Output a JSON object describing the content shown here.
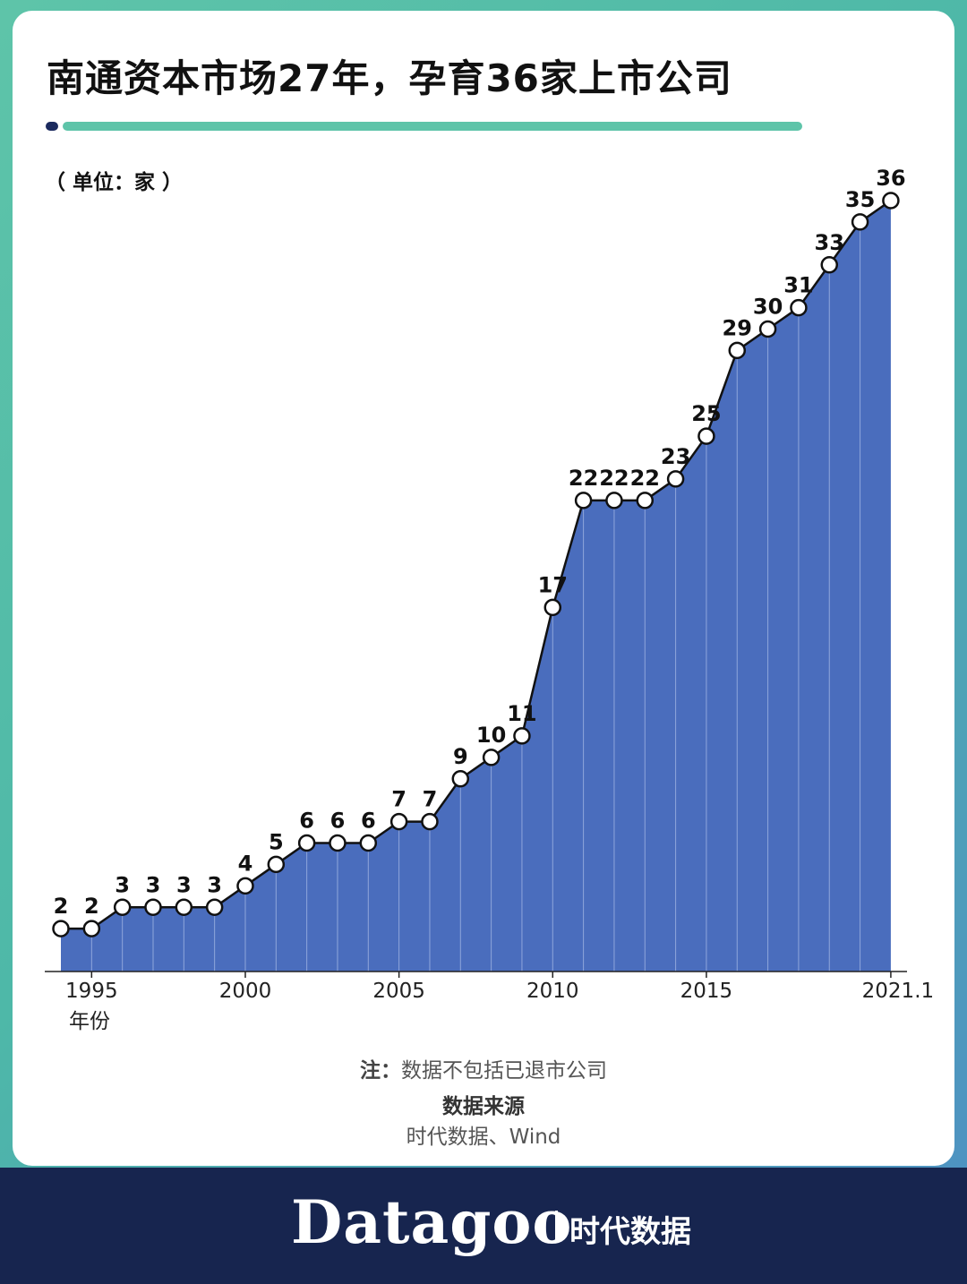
{
  "title": "南通资本市场27年，孕育36家上市公司",
  "unit_label": "（ 单位：家 ）",
  "colors": {
    "accent": "#5ec4a9",
    "title_dot": "#1b2a5e",
    "area_fill": "#4a6dbd",
    "line": "#111111",
    "marker_fill": "#ffffff",
    "footer_bg": "#17254f"
  },
  "chart_data": {
    "type": "area",
    "x": [
      "1994",
      "1995",
      "1996",
      "1997",
      "1998",
      "1999",
      "2000",
      "2001",
      "2002",
      "2003",
      "2004",
      "2005",
      "2006",
      "2007",
      "2008",
      "2009",
      "2010",
      "2011",
      "2012",
      "2013",
      "2014",
      "2015",
      "2016",
      "2017",
      "2018",
      "2019",
      "2020",
      "2021.1"
    ],
    "values": [
      2,
      2,
      3,
      3,
      3,
      3,
      4,
      5,
      6,
      6,
      6,
      7,
      7,
      9,
      10,
      11,
      17,
      22,
      22,
      22,
      23,
      25,
      29,
      30,
      31,
      33,
      35,
      36
    ],
    "tick_labels": [
      "1995",
      "2000",
      "2005",
      "2010",
      "2015",
      "2021.1"
    ],
    "xlabel": "年份",
    "ylabel": "",
    "ylim": [
      0,
      36
    ],
    "grid": false,
    "legend": "none",
    "data_labels": true
  },
  "notes": {
    "note_prefix": "注：",
    "note_text": "数据不包括已退市公司",
    "source_title": "数据来源",
    "source_text": "时代数据、Wind"
  },
  "footer": {
    "brand": "Datagoo",
    "brand_cn": "时代数据"
  }
}
